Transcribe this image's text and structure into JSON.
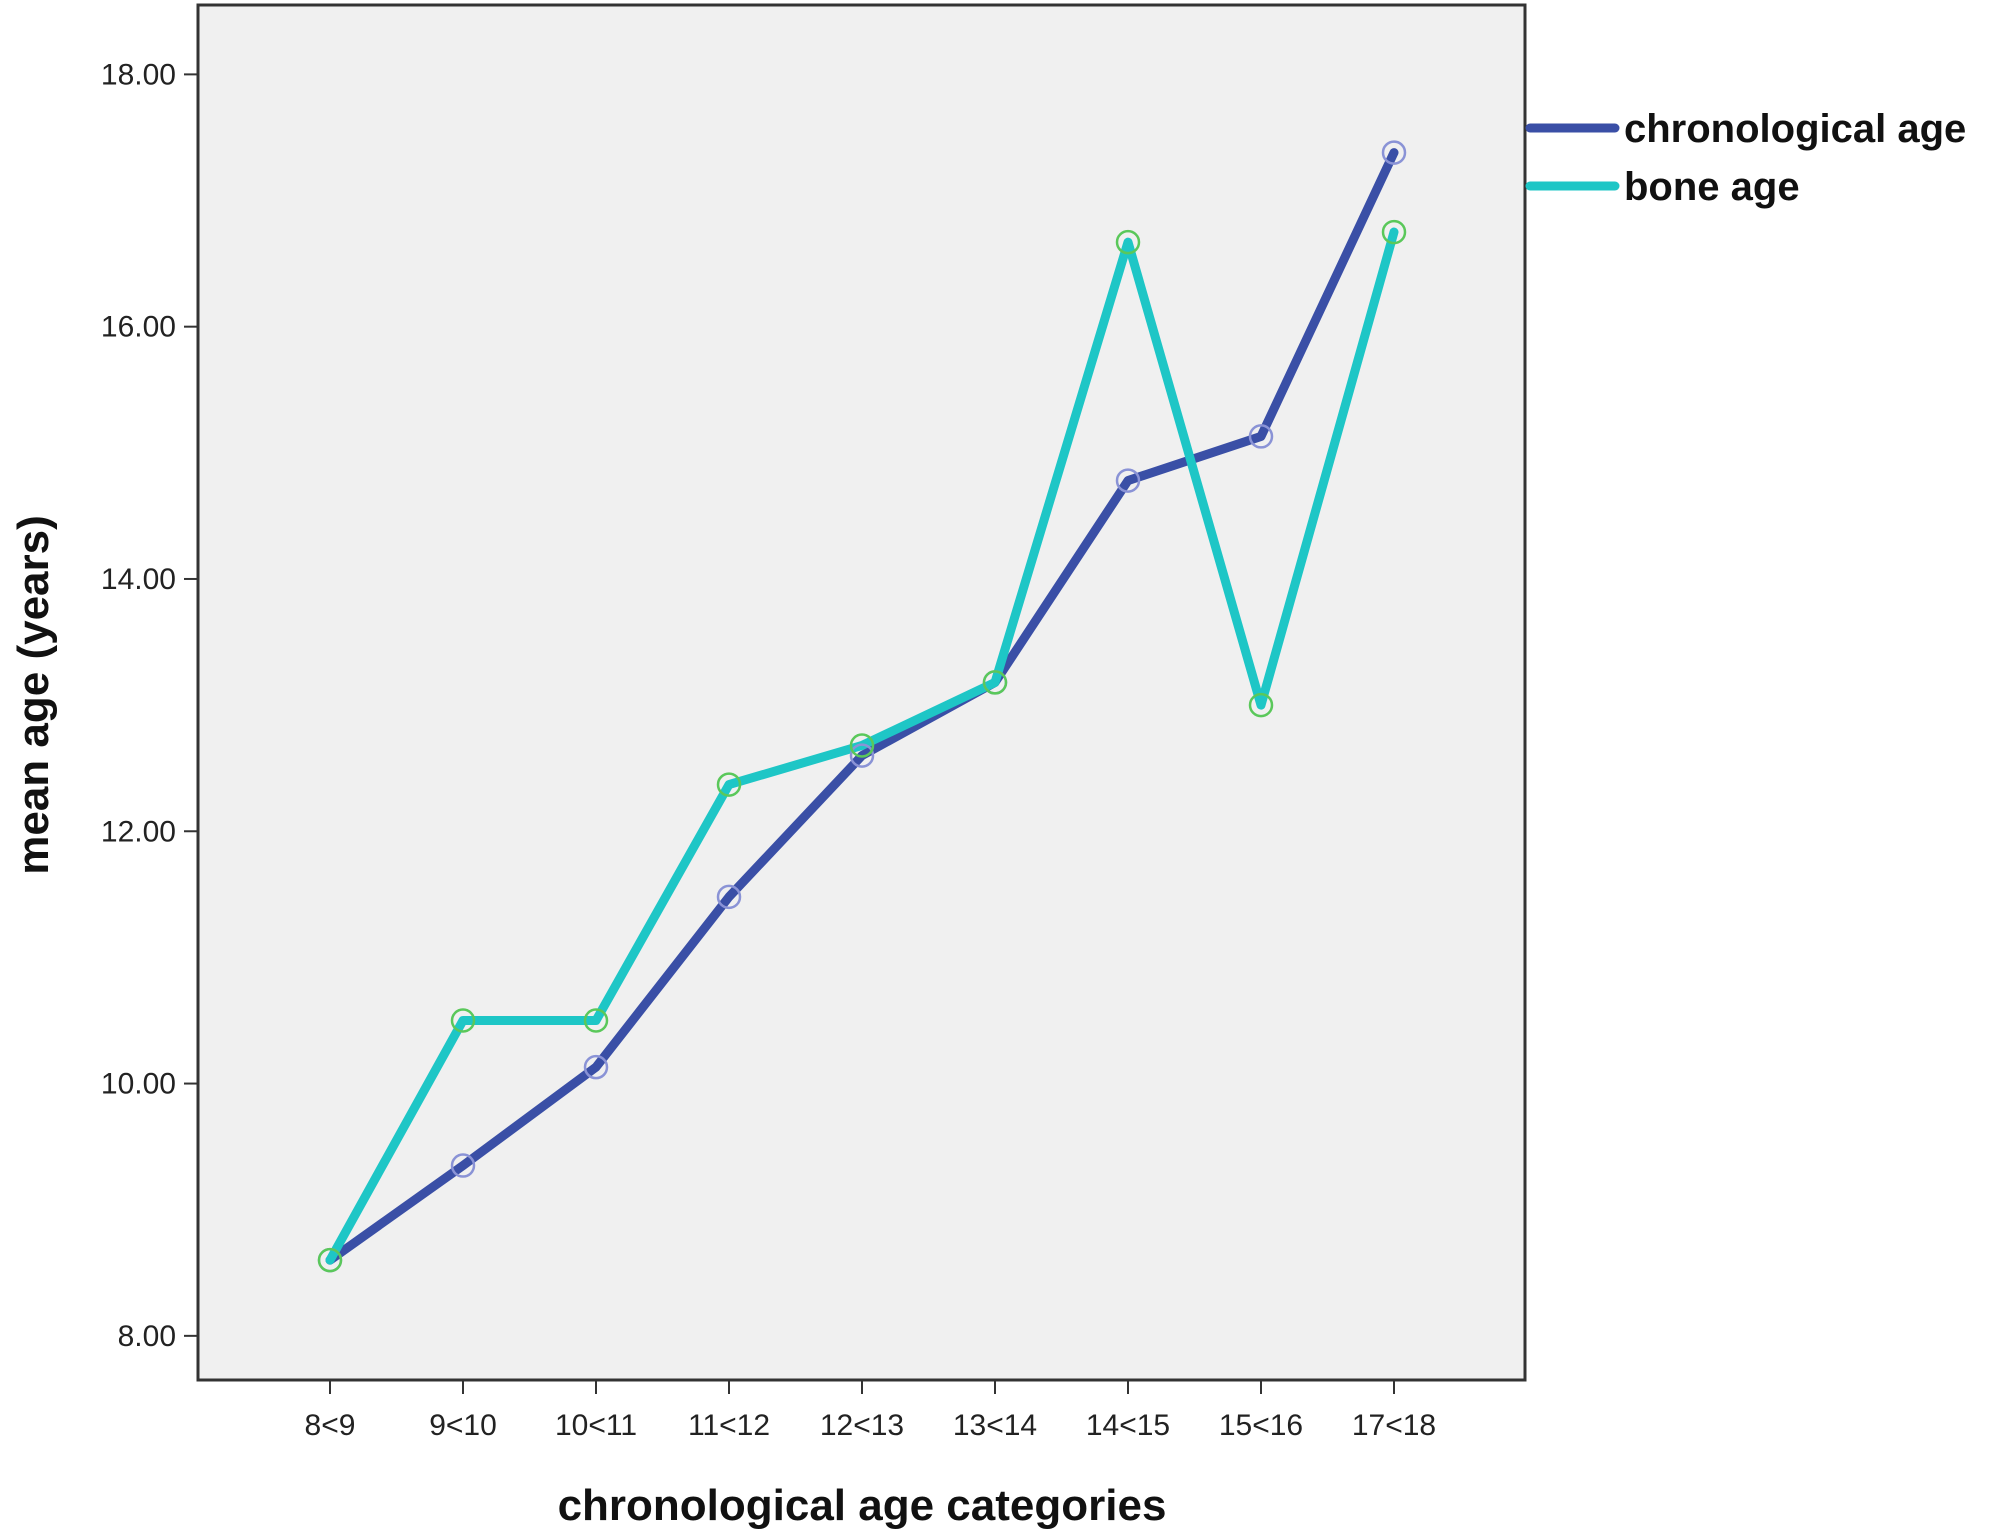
{
  "chart_data": {
    "type": "line",
    "xlabel": "chronological age categories",
    "ylabel": "mean age (years)",
    "categories": [
      "8<9",
      "9<10",
      "10<11",
      "11<12",
      "12<13",
      "13<14",
      "14<15",
      "15<16",
      "17<18"
    ],
    "yticks": [
      "8.00",
      "10.00",
      "12.00",
      "14.00",
      "16.00",
      "18.00"
    ],
    "ylim": [
      7.65,
      18.55
    ],
    "grid": false,
    "legend_position": "right",
    "series": [
      {
        "name": "chronological age",
        "color": "#3a4fa6",
        "marker_color": "#8a93d6",
        "values": [
          8.6,
          9.35,
          10.13,
          11.48,
          12.6,
          13.18,
          14.78,
          15.13,
          17.38
        ]
      },
      {
        "name": "bone age",
        "color": "#1ec6c6",
        "marker_color": "#5ac85a",
        "values": [
          8.6,
          10.5,
          10.5,
          12.37,
          12.68,
          13.18,
          16.67,
          13.0,
          16.75
        ]
      }
    ],
    "plot_background": "#f0f0f0"
  }
}
